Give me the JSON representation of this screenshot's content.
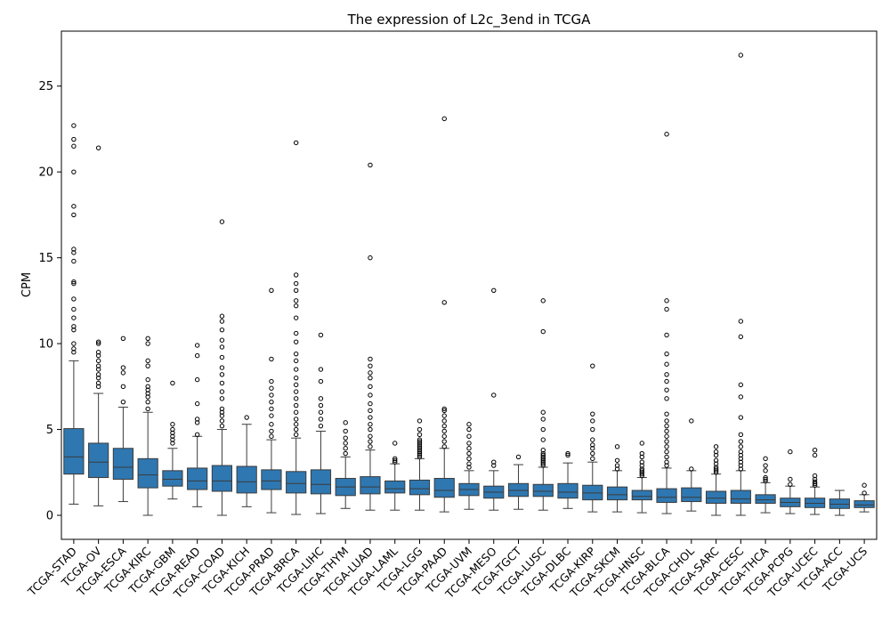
{
  "chart_data": {
    "type": "box",
    "title": "The expression of L2c_3end in TCGA",
    "xlabel": "",
    "ylabel": "CPM",
    "ylim": [
      -1.4,
      28.2
    ],
    "yticks": [
      0,
      5,
      10,
      15,
      20,
      25
    ],
    "grid": false,
    "box_color": "#2e77b1",
    "series": [
      {
        "category": "TCGA-STAD",
        "whisker_low": 0.65,
        "q1": 2.4,
        "median": 3.4,
        "q3": 5.05,
        "whisker_high": 9.0,
        "outliers": [
          9.5,
          9.7,
          10.0,
          10.8,
          11.0,
          11.5,
          12.0,
          12.6,
          13.5,
          13.6,
          14.8,
          15.3,
          15.5,
          17.5,
          18.0,
          20.0,
          21.5,
          21.9,
          22.7
        ]
      },
      {
        "category": "TCGA-OV",
        "whisker_low": 0.55,
        "q1": 2.2,
        "median": 3.1,
        "q3": 4.2,
        "whisker_high": 7.1,
        "outliers": [
          7.5,
          7.7,
          8.0,
          8.2,
          8.5,
          8.7,
          9.0,
          9.3,
          9.5,
          10.0,
          10.1,
          21.4
        ]
      },
      {
        "category": "TCGA-ESCA",
        "whisker_low": 0.8,
        "q1": 2.1,
        "median": 2.8,
        "q3": 3.9,
        "whisker_high": 6.3,
        "outliers": [
          6.6,
          7.5,
          8.3,
          8.6,
          10.3
        ]
      },
      {
        "category": "TCGA-KIRC",
        "whisker_low": 0.0,
        "q1": 1.6,
        "median": 2.35,
        "q3": 3.3,
        "whisker_high": 6.0,
        "outliers": [
          6.2,
          6.6,
          6.9,
          7.1,
          7.3,
          7.5,
          7.9,
          8.7,
          9.0,
          10.0,
          10.3
        ]
      },
      {
        "category": "TCGA-GBM",
        "whisker_low": 0.95,
        "q1": 1.7,
        "median": 2.1,
        "q3": 2.6,
        "whisker_high": 3.9,
        "outliers": [
          4.2,
          4.4,
          4.6,
          4.8,
          5.0,
          5.3,
          7.7
        ]
      },
      {
        "category": "TCGA-READ",
        "whisker_low": 0.5,
        "q1": 1.5,
        "median": 2.0,
        "q3": 2.75,
        "whisker_high": 4.6,
        "outliers": [
          4.7,
          5.4,
          5.6,
          6.5,
          7.9,
          9.3,
          9.9
        ]
      },
      {
        "category": "TCGA-COAD",
        "whisker_low": 0.0,
        "q1": 1.4,
        "median": 2.0,
        "q3": 2.9,
        "whisker_high": 5.0,
        "outliers": [
          5.2,
          5.5,
          5.8,
          6.0,
          6.2,
          6.8,
          7.2,
          7.7,
          8.2,
          8.6,
          9.2,
          9.8,
          10.2,
          10.8,
          11.3,
          11.6,
          17.1
        ]
      },
      {
        "category": "TCGA-KICH",
        "whisker_low": 0.5,
        "q1": 1.3,
        "median": 1.95,
        "q3": 2.85,
        "whisker_high": 5.3,
        "outliers": [
          5.7
        ]
      },
      {
        "category": "TCGA-PRAD",
        "whisker_low": 0.15,
        "q1": 1.5,
        "median": 2.0,
        "q3": 2.65,
        "whisker_high": 4.4,
        "outliers": [
          4.6,
          4.9,
          5.3,
          5.8,
          6.2,
          6.6,
          7.0,
          7.4,
          7.8,
          9.1,
          13.1
        ]
      },
      {
        "category": "TCGA-BRCA",
        "whisker_low": 0.05,
        "q1": 1.3,
        "median": 1.85,
        "q3": 2.55,
        "whisker_high": 4.5,
        "outliers": [
          4.7,
          5.0,
          5.3,
          5.6,
          6.0,
          6.4,
          6.8,
          7.2,
          7.6,
          8.0,
          8.5,
          9.0,
          9.4,
          10.1,
          10.6,
          11.5,
          12.2,
          12.5,
          13.1,
          13.5,
          14.0,
          21.7
        ]
      },
      {
        "category": "TCGA-LIHC",
        "whisker_low": 0.1,
        "q1": 1.25,
        "median": 1.8,
        "q3": 2.65,
        "whisker_high": 4.9,
        "outliers": [
          5.2,
          5.6,
          6.0,
          6.4,
          6.8,
          7.8,
          8.5,
          10.5
        ]
      },
      {
        "category": "TCGA-THYM",
        "whisker_low": 0.4,
        "q1": 1.15,
        "median": 1.65,
        "q3": 2.15,
        "whisker_high": 3.4,
        "outliers": [
          3.6,
          3.9,
          4.2,
          4.5,
          4.9,
          5.4
        ]
      },
      {
        "category": "TCGA-LUAD",
        "whisker_low": 0.3,
        "q1": 1.25,
        "median": 1.65,
        "q3": 2.25,
        "whisker_high": 3.8,
        "outliers": [
          4.0,
          4.3,
          4.6,
          5.0,
          5.3,
          5.7,
          6.1,
          6.5,
          7.0,
          7.5,
          8.0,
          8.3,
          8.7,
          9.1,
          15.0,
          20.4
        ]
      },
      {
        "category": "TCGA-LAML",
        "whisker_low": 0.3,
        "q1": 1.3,
        "median": 1.55,
        "q3": 2.0,
        "whisker_high": 3.0,
        "outliers": [
          3.1,
          3.2,
          3.3,
          4.2
        ]
      },
      {
        "category": "TCGA-LGG",
        "whisker_low": 0.3,
        "q1": 1.2,
        "median": 1.55,
        "q3": 2.05,
        "whisker_high": 3.3,
        "outliers": [
          3.4,
          3.5,
          3.6,
          3.7,
          3.8,
          3.9,
          4.0,
          4.1,
          4.2,
          4.3,
          4.4,
          4.7,
          5.0,
          5.5
        ]
      },
      {
        "category": "TCGA-PAAD",
        "whisker_low": 0.2,
        "q1": 1.05,
        "median": 1.45,
        "q3": 2.15,
        "whisker_high": 3.9,
        "outliers": [
          4.0,
          4.3,
          4.6,
          4.9,
          5.2,
          5.5,
          5.8,
          6.1,
          6.2,
          12.4,
          23.1
        ]
      },
      {
        "category": "TCGA-UVM",
        "whisker_low": 0.35,
        "q1": 1.15,
        "median": 1.5,
        "q3": 1.85,
        "whisker_high": 2.6,
        "outliers": [
          2.8,
          3.0,
          3.3,
          3.6,
          3.9,
          4.2,
          4.6,
          5.0,
          5.3
        ]
      },
      {
        "category": "TCGA-MESO",
        "whisker_low": 0.3,
        "q1": 1.0,
        "median": 1.35,
        "q3": 1.7,
        "whisker_high": 2.6,
        "outliers": [
          2.9,
          3.1,
          7.0,
          13.1
        ]
      },
      {
        "category": "TCGA-TGCT",
        "whisker_low": 0.35,
        "q1": 1.1,
        "median": 1.45,
        "q3": 1.85,
        "whisker_high": 2.95,
        "outliers": [
          3.4
        ]
      },
      {
        "category": "TCGA-LUSC",
        "whisker_low": 0.3,
        "q1": 1.1,
        "median": 1.4,
        "q3": 1.8,
        "whisker_high": 2.8,
        "outliers": [
          2.9,
          3.0,
          3.1,
          3.2,
          3.3,
          3.4,
          3.5,
          3.6,
          3.8,
          4.4,
          5.0,
          5.6,
          6.0,
          10.7,
          12.5
        ]
      },
      {
        "category": "TCGA-DLBC",
        "whisker_low": 0.4,
        "q1": 1.0,
        "median": 1.35,
        "q3": 1.85,
        "whisker_high": 3.05,
        "outliers": [
          3.5,
          3.6
        ]
      },
      {
        "category": "TCGA-KIRP",
        "whisker_low": 0.2,
        "q1": 0.9,
        "median": 1.3,
        "q3": 1.75,
        "whisker_high": 3.1,
        "outliers": [
          3.3,
          3.6,
          3.9,
          4.1,
          4.4,
          5.0,
          5.5,
          5.9,
          8.7
        ]
      },
      {
        "category": "TCGA-SKCM",
        "whisker_low": 0.2,
        "q1": 0.9,
        "median": 1.2,
        "q3": 1.65,
        "whisker_high": 2.6,
        "outliers": [
          2.7,
          2.9,
          3.2,
          4.0
        ]
      },
      {
        "category": "TCGA-HNSC",
        "whisker_low": 0.15,
        "q1": 0.9,
        "median": 1.1,
        "q3": 1.45,
        "whisker_high": 2.2,
        "outliers": [
          2.3,
          2.4,
          2.5,
          2.6,
          2.7,
          2.9,
          3.1,
          3.4,
          3.6,
          4.2
        ]
      },
      {
        "category": "TCGA-BLCA",
        "whisker_low": 0.1,
        "q1": 0.75,
        "median": 1.05,
        "q3": 1.55,
        "whisker_high": 2.75,
        "outliers": [
          2.9,
          3.1,
          3.4,
          3.7,
          4.0,
          4.3,
          4.6,
          4.9,
          5.2,
          5.5,
          5.9,
          6.8,
          7.3,
          7.8,
          8.2,
          8.8,
          9.4,
          10.5,
          12.0,
          12.5,
          22.2
        ]
      },
      {
        "category": "TCGA-CHOL",
        "whisker_low": 0.25,
        "q1": 0.8,
        "median": 1.05,
        "q3": 1.6,
        "whisker_high": 2.6,
        "outliers": [
          2.7,
          5.5
        ]
      },
      {
        "category": "TCGA-SARC",
        "whisker_low": 0.0,
        "q1": 0.7,
        "median": 1.0,
        "q3": 1.4,
        "whisker_high": 2.4,
        "outliers": [
          2.5,
          2.6,
          2.7,
          2.8,
          3.0,
          3.2,
          3.5,
          3.7,
          4.0
        ]
      },
      {
        "category": "TCGA-CESC",
        "whisker_low": 0.0,
        "q1": 0.7,
        "median": 0.95,
        "q3": 1.45,
        "whisker_high": 2.6,
        "outliers": [
          2.7,
          2.9,
          3.1,
          3.3,
          3.5,
          3.7,
          4.0,
          4.3,
          4.7,
          5.7,
          6.9,
          7.6,
          10.4,
          11.3,
          26.8
        ]
      },
      {
        "category": "TCGA-THCA",
        "whisker_low": 0.15,
        "q1": 0.7,
        "median": 0.9,
        "q3": 1.2,
        "whisker_high": 1.9,
        "outliers": [
          2.0,
          2.1,
          2.2,
          2.6,
          2.9,
          3.3
        ]
      },
      {
        "category": "TCGA-PCPG",
        "whisker_low": 0.1,
        "q1": 0.5,
        "median": 0.75,
        "q3": 1.0,
        "whisker_high": 1.7,
        "outliers": [
          1.8,
          2.1,
          3.7
        ]
      },
      {
        "category": "TCGA-UCEC",
        "whisker_low": 0.05,
        "q1": 0.45,
        "median": 0.7,
        "q3": 1.0,
        "whisker_high": 1.65,
        "outliers": [
          1.75,
          1.85,
          1.95,
          2.1,
          2.3,
          3.5,
          3.8
        ]
      },
      {
        "category": "TCGA-ACC",
        "whisker_low": 0.0,
        "q1": 0.4,
        "median": 0.65,
        "q3": 0.95,
        "whisker_high": 1.45,
        "outliers": []
      },
      {
        "category": "TCGA-UCS",
        "whisker_low": 0.2,
        "q1": 0.45,
        "median": 0.6,
        "q3": 0.85,
        "whisker_high": 1.2,
        "outliers": [
          1.3,
          1.75
        ]
      }
    ]
  }
}
